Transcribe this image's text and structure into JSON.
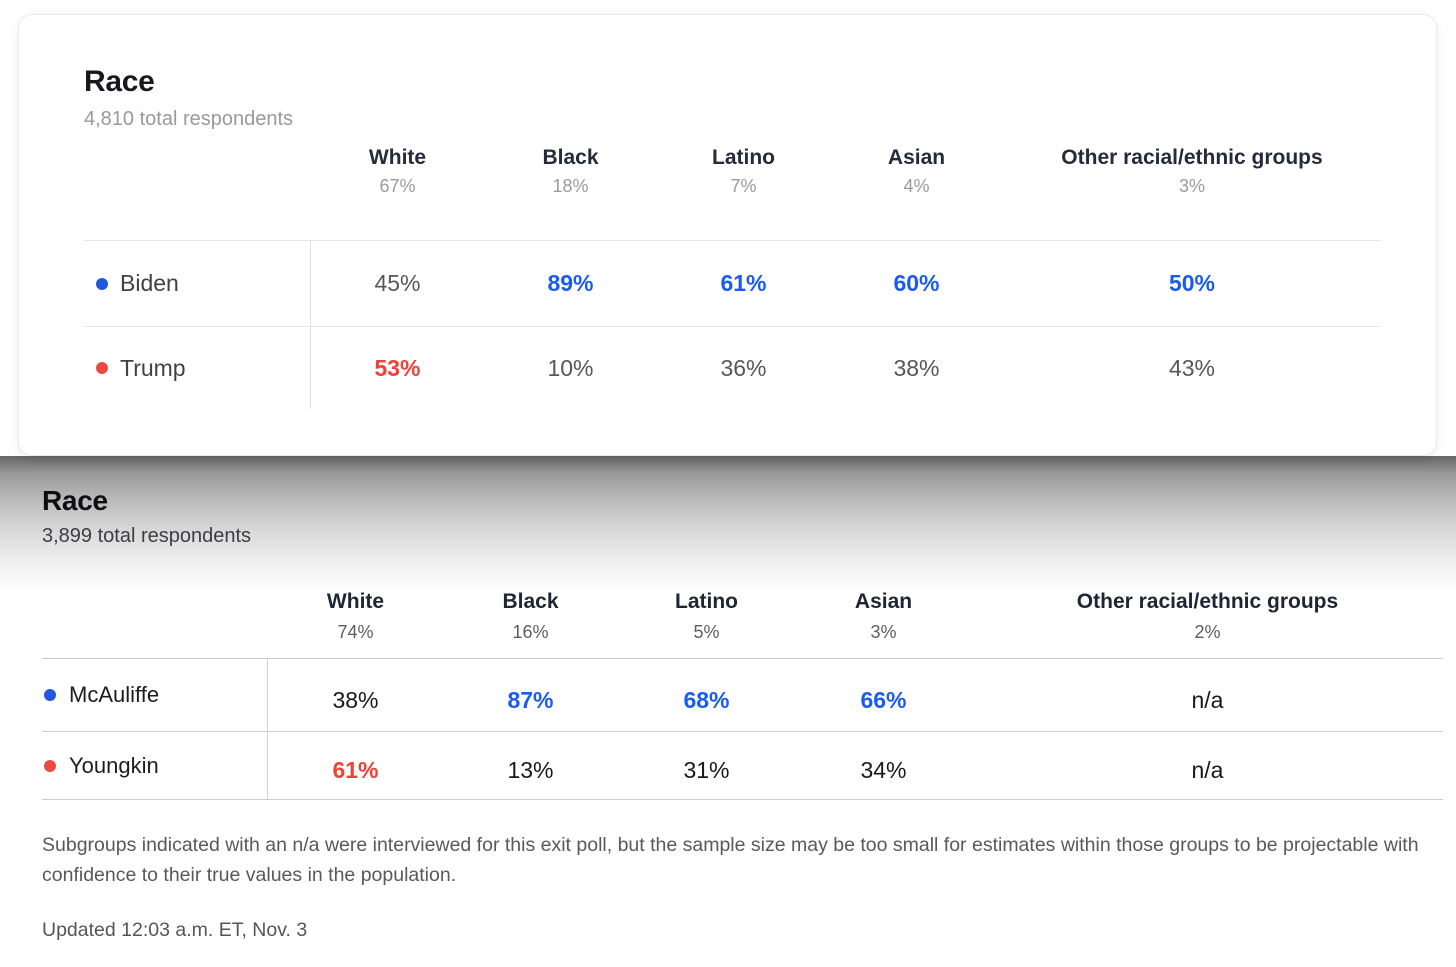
{
  "colors": {
    "highlight_blue": "#1a5cf2",
    "highlight_red": "#ee4137",
    "dot_blue": "#2457e0",
    "dot_red": "#ea4a41",
    "background": "#ffffff"
  },
  "chart_data": [
    {
      "type": "table",
      "title": "Race",
      "subtitle": "4,810 total respondents",
      "total_respondents": 4810,
      "columns": [
        "White",
        "Black",
        "Latino",
        "Asian",
        "Other racial/ethnic groups"
      ],
      "column_shares": [
        "67%",
        "18%",
        "7%",
        "4%",
        "3%"
      ],
      "rows": [
        {
          "name": "Biden",
          "party_color": "blue",
          "values": [
            "45%",
            "89%",
            "61%",
            "60%",
            "50%"
          ],
          "highlighted": [
            false,
            true,
            true,
            true,
            true
          ]
        },
        {
          "name": "Trump",
          "party_color": "red",
          "values": [
            "53%",
            "10%",
            "36%",
            "38%",
            "43%"
          ],
          "highlighted": [
            true,
            false,
            false,
            false,
            false
          ]
        }
      ]
    },
    {
      "type": "table",
      "title": "Race",
      "subtitle": "3,899 total respondents",
      "total_respondents": 3899,
      "columns": [
        "White",
        "Black",
        "Latino",
        "Asian",
        "Other racial/ethnic groups"
      ],
      "column_shares": [
        "74%",
        "16%",
        "5%",
        "3%",
        "2%"
      ],
      "rows": [
        {
          "name": "McAuliffe",
          "party_color": "blue",
          "values": [
            "38%",
            "87%",
            "68%",
            "66%",
            "n/a"
          ],
          "highlighted": [
            false,
            true,
            true,
            true,
            false
          ]
        },
        {
          "name": "Youngkin",
          "party_color": "red",
          "values": [
            "61%",
            "13%",
            "31%",
            "34%",
            "n/a"
          ],
          "highlighted": [
            true,
            false,
            false,
            false,
            false
          ]
        }
      ]
    }
  ],
  "footer": {
    "note": "Subgroups indicated with an n/a were interviewed for this exit poll, but the sample size may be too small for estimates within those groups to be projectable with confidence to their true values in the population.",
    "updated": "Updated 12:03 a.m. ET, Nov. 3"
  }
}
